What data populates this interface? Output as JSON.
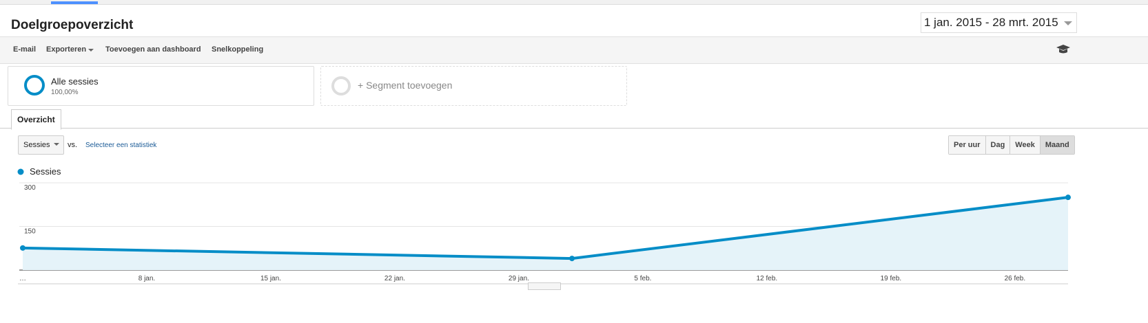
{
  "header": {
    "title": "Doelgroepoverzicht",
    "date_range": "1 jan. 2015 - 28 mrt. 2015"
  },
  "toolbar": [
    "E-mail",
    "Exporteren",
    "Toevoegen aan dashboard",
    "Snelkoppeling"
  ],
  "segments": {
    "name": "Alle sessies",
    "share": "100,00%",
    "add": "+ Segment toevoegen"
  },
  "tab": "Overzicht",
  "controls": {
    "metric": "Sessies",
    "vs": "vs.",
    "select": "Selecteer een statistiek",
    "granularity": [
      "Per uur",
      "Dag",
      "Week",
      "Maand"
    ]
  },
  "chart_data": {
    "type": "line",
    "x": [
      0,
      31,
      59
    ],
    "xlim": [
      0,
      59
    ],
    "xticks": [
      {
        "value": 0,
        "label": "…"
      },
      {
        "value": 7,
        "label": "8 jan."
      },
      {
        "value": 14,
        "label": "15 jan."
      },
      {
        "value": 21,
        "label": "22 jan."
      },
      {
        "value": 28,
        "label": "29 jan."
      },
      {
        "value": 35,
        "label": "5 feb."
      },
      {
        "value": 42,
        "label": "12 feb."
      },
      {
        "value": 49,
        "label": "19 feb."
      },
      {
        "value": 56,
        "label": "26 feb."
      }
    ],
    "ylim": [
      0,
      300
    ],
    "yticks": [
      150,
      300
    ],
    "grid": true,
    "series": [
      {
        "name": "Sessies",
        "color": "#058dc7",
        "values": [
          76,
          40,
          250
        ]
      }
    ]
  }
}
